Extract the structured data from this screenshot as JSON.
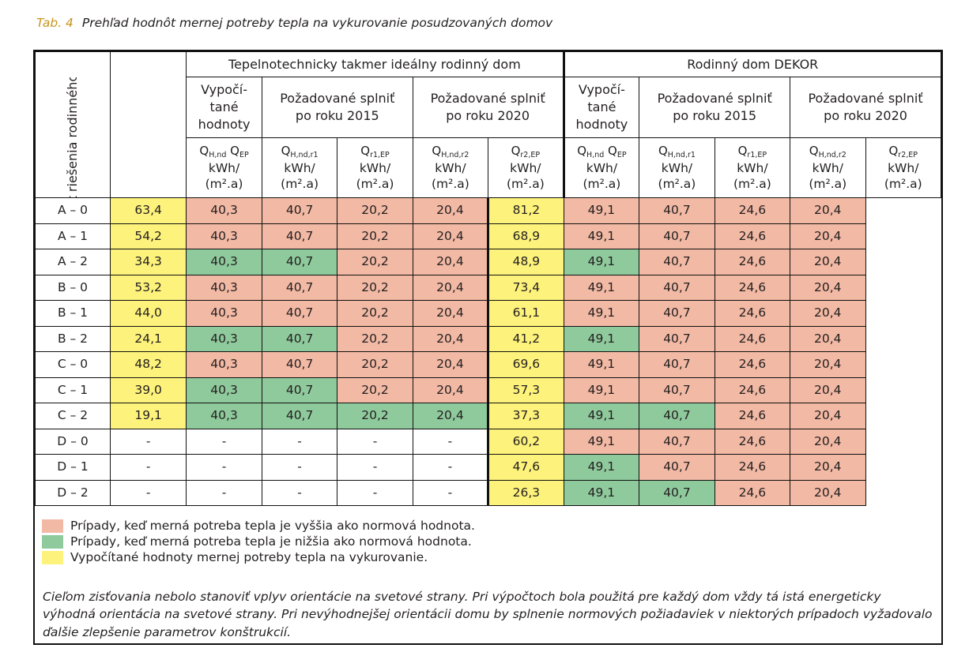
{
  "caption": {
    "number": "Tab. 4",
    "title": "Prehľad hodnôt mernej potreby tepla na vykurovanie posudzovaných domov"
  },
  "table": {
    "row_axis_label": "Variant riešenia rodinného domu",
    "groups": [
      "Tepelnotechnicky takmer ideálny rodinný dom",
      "Rodinný dom DEKOR"
    ],
    "subheaders": {
      "calculated": [
        "Vypočí-",
        "tané",
        "hodnoty"
      ],
      "req2015": [
        "Požadované splniť",
        "po roku 2015"
      ],
      "req2020": [
        "Požadované splniť",
        "po roku 2020"
      ]
    },
    "unit": [
      "kWh/",
      "(m².a)"
    ],
    "symbols": {
      "calc": {
        "q1": "Q",
        "s1": "H,nd",
        "q2": " Q",
        "s2": "EP"
      },
      "hnd_r1": {
        "q": "Q",
        "s": "H,nd,r1"
      },
      "r1_ep": {
        "q": "Q",
        "s": "r1,EP"
      },
      "hnd_r2": {
        "q": "Q",
        "s": "H,nd,r2"
      },
      "r2_ep": {
        "q": "Q",
        "s": "r2,EP"
      }
    },
    "rows": [
      {
        "label": "A – 0",
        "cells": [
          [
            "63,4",
            "y"
          ],
          [
            "40,3",
            "r"
          ],
          [
            "40,7",
            "r"
          ],
          [
            "20,2",
            "r"
          ],
          [
            "20,4",
            "r"
          ],
          [
            "81,2",
            "y"
          ],
          [
            "49,1",
            "r"
          ],
          [
            "40,7",
            "r"
          ],
          [
            "24,6",
            "r"
          ],
          [
            "20,4",
            "r"
          ]
        ]
      },
      {
        "label": "A – 1",
        "cells": [
          [
            "54,2",
            "y"
          ],
          [
            "40,3",
            "r"
          ],
          [
            "40,7",
            "r"
          ],
          [
            "20,2",
            "r"
          ],
          [
            "20,4",
            "r"
          ],
          [
            "68,9",
            "y"
          ],
          [
            "49,1",
            "r"
          ],
          [
            "40,7",
            "r"
          ],
          [
            "24,6",
            "r"
          ],
          [
            "20,4",
            "r"
          ]
        ]
      },
      {
        "label": "A – 2",
        "cells": [
          [
            "34,3",
            "y"
          ],
          [
            "40,3",
            "g"
          ],
          [
            "40,7",
            "g"
          ],
          [
            "20,2",
            "r"
          ],
          [
            "20,4",
            "r"
          ],
          [
            "48,9",
            "y"
          ],
          [
            "49,1",
            "g"
          ],
          [
            "40,7",
            "r"
          ],
          [
            "24,6",
            "r"
          ],
          [
            "20,4",
            "r"
          ]
        ]
      },
      {
        "label": "B – 0",
        "cells": [
          [
            "53,2",
            "y"
          ],
          [
            "40,3",
            "r"
          ],
          [
            "40,7",
            "r"
          ],
          [
            "20,2",
            "r"
          ],
          [
            "20,4",
            "r"
          ],
          [
            "73,4",
            "y"
          ],
          [
            "49,1",
            "r"
          ],
          [
            "40,7",
            "r"
          ],
          [
            "24,6",
            "r"
          ],
          [
            "20,4",
            "r"
          ]
        ]
      },
      {
        "label": "B – 1",
        "cells": [
          [
            "44,0",
            "y"
          ],
          [
            "40,3",
            "r"
          ],
          [
            "40,7",
            "r"
          ],
          [
            "20,2",
            "r"
          ],
          [
            "20,4",
            "r"
          ],
          [
            "61,1",
            "y"
          ],
          [
            "49,1",
            "r"
          ],
          [
            "40,7",
            "r"
          ],
          [
            "24,6",
            "r"
          ],
          [
            "20,4",
            "r"
          ]
        ]
      },
      {
        "label": "B – 2",
        "cells": [
          [
            "24,1",
            "y"
          ],
          [
            "40,3",
            "g"
          ],
          [
            "40,7",
            "g"
          ],
          [
            "20,2",
            "r"
          ],
          [
            "20,4",
            "r"
          ],
          [
            "41,2",
            "y"
          ],
          [
            "49,1",
            "g"
          ],
          [
            "40,7",
            "r"
          ],
          [
            "24,6",
            "r"
          ],
          [
            "20,4",
            "r"
          ]
        ]
      },
      {
        "label": "C – 0",
        "cells": [
          [
            "48,2",
            "y"
          ],
          [
            "40,3",
            "r"
          ],
          [
            "40,7",
            "r"
          ],
          [
            "20,2",
            "r"
          ],
          [
            "20,4",
            "r"
          ],
          [
            "69,6",
            "y"
          ],
          [
            "49,1",
            "r"
          ],
          [
            "40,7",
            "r"
          ],
          [
            "24,6",
            "r"
          ],
          [
            "20,4",
            "r"
          ]
        ]
      },
      {
        "label": "C – 1",
        "cells": [
          [
            "39,0",
            "y"
          ],
          [
            "40,3",
            "g"
          ],
          [
            "40,7",
            "g"
          ],
          [
            "20,2",
            "r"
          ],
          [
            "20,4",
            "r"
          ],
          [
            "57,3",
            "y"
          ],
          [
            "49,1",
            "r"
          ],
          [
            "40,7",
            "r"
          ],
          [
            "24,6",
            "r"
          ],
          [
            "20,4",
            "r"
          ]
        ]
      },
      {
        "label": "C – 2",
        "cells": [
          [
            "19,1",
            "y"
          ],
          [
            "40,3",
            "g"
          ],
          [
            "40,7",
            "g"
          ],
          [
            "20,2",
            "g"
          ],
          [
            "20,4",
            "g"
          ],
          [
            "37,3",
            "y"
          ],
          [
            "49,1",
            "g"
          ],
          [
            "40,7",
            "g"
          ],
          [
            "24,6",
            "r"
          ],
          [
            "20,4",
            "r"
          ]
        ]
      },
      {
        "label": "D – 0",
        "cells": [
          [
            "-",
            "w"
          ],
          [
            "-",
            "w"
          ],
          [
            "-",
            "w"
          ],
          [
            "-",
            "w"
          ],
          [
            "-",
            "w"
          ],
          [
            "60,2",
            "y"
          ],
          [
            "49,1",
            "r"
          ],
          [
            "40,7",
            "r"
          ],
          [
            "24,6",
            "r"
          ],
          [
            "20,4",
            "r"
          ]
        ]
      },
      {
        "label": "D – 1",
        "cells": [
          [
            "-",
            "w"
          ],
          [
            "-",
            "w"
          ],
          [
            "-",
            "w"
          ],
          [
            "-",
            "w"
          ],
          [
            "-",
            "w"
          ],
          [
            "47,6",
            "y"
          ],
          [
            "49,1",
            "g"
          ],
          [
            "40,7",
            "r"
          ],
          [
            "24,6",
            "r"
          ],
          [
            "20,4",
            "r"
          ]
        ]
      },
      {
        "label": "D – 2",
        "cells": [
          [
            "-",
            "w"
          ],
          [
            "-",
            "w"
          ],
          [
            "-",
            "w"
          ],
          [
            "-",
            "w"
          ],
          [
            "-",
            "w"
          ],
          [
            "26,3",
            "y"
          ],
          [
            "49,1",
            "g"
          ],
          [
            "40,7",
            "g"
          ],
          [
            "24,6",
            "r"
          ],
          [
            "20,4",
            "r"
          ]
        ]
      }
    ]
  },
  "legend": [
    {
      "color": "#f2b9a4",
      "text": "Prípady, keď merná potreba tepla je vyššia ako normová hodnota."
    },
    {
      "color": "#8fca9c",
      "text": "Prípady, keď merná potreba tepla je nižšia ako normová hodnota."
    },
    {
      "color": "#fdf27b",
      "text": "Vypočítané hodnoty mernej potreby tepla na vykurovanie."
    }
  ],
  "note": "Cieľom zisťovania nebolo stanoviť vplyv orientácie na svetové strany. Pri výpočtoch bola použitá pre každý dom vždy tá istá energeticky výhodná orientácia na svetové strany. Pri nevýhodnejšej orientácii domu by splnenie normových požiadaviek v niektorých prípadoch vyžadovalo ďalšie zlepšenie parametrov konštrukcií."
}
